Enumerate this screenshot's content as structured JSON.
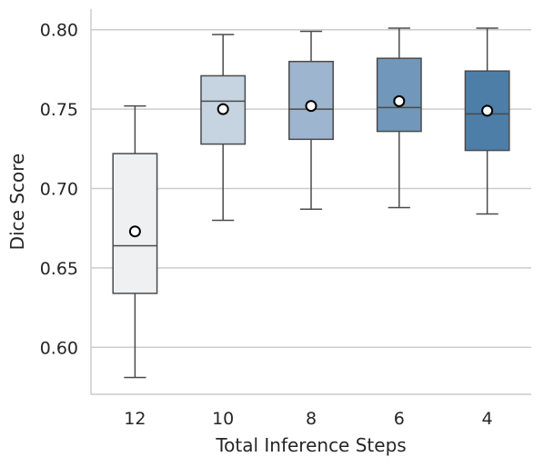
{
  "chart_data": {
    "type": "box",
    "title": "",
    "xlabel": "Total Inference Steps",
    "ylabel": "Dice Score",
    "ylim": [
      0.571,
      0.813
    ],
    "yticks": [
      0.6,
      0.65,
      0.7,
      0.75,
      0.8
    ],
    "ytick_labels": [
      "0.60",
      "0.65",
      "0.70",
      "0.75",
      "0.80"
    ],
    "grid": "horizontal",
    "categories": [
      "12",
      "10",
      "8",
      "6",
      "4"
    ],
    "boxes": [
      {
        "category": "12",
        "whisker_low": 0.581,
        "q1": 0.634,
        "median": 0.664,
        "q3": 0.722,
        "whisker_high": 0.752,
        "mean": 0.673,
        "color": "#eff0f2"
      },
      {
        "category": "10",
        "whisker_low": 0.68,
        "q1": 0.728,
        "median": 0.755,
        "q3": 0.771,
        "whisker_high": 0.797,
        "mean": 0.75,
        "color": "#c6d3e0"
      },
      {
        "category": "8",
        "whisker_low": 0.687,
        "q1": 0.731,
        "median": 0.75,
        "q3": 0.78,
        "whisker_high": 0.799,
        "mean": 0.752,
        "color": "#9db5ce"
      },
      {
        "category": "6",
        "whisker_low": 0.688,
        "q1": 0.736,
        "median": 0.751,
        "q3": 0.782,
        "whisker_high": 0.801,
        "mean": 0.755,
        "color": "#7197bb"
      },
      {
        "category": "4",
        "whisker_low": 0.684,
        "q1": 0.724,
        "median": 0.747,
        "q3": 0.774,
        "whisker_high": 0.801,
        "mean": 0.749,
        "color": "#4d7ea8"
      }
    ]
  }
}
